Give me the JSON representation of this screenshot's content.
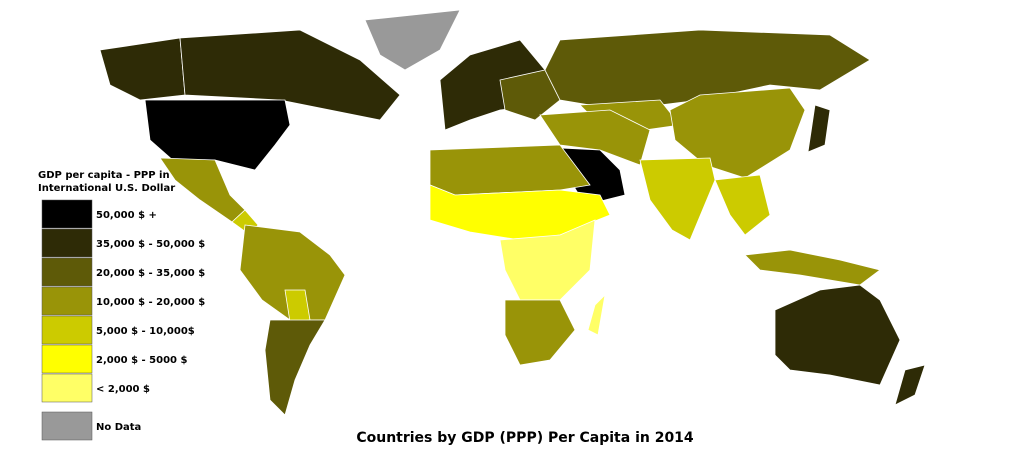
{
  "map": {
    "title": "Countries by GDP (PPP) Per Capita in 2014",
    "legend": {
      "title": [
        "GDP per capita - PPP in",
        "International U.S. Dollar"
      ],
      "items": [
        {
          "label": "50,000 $ +",
          "color": "#000000"
        },
        {
          "label": "35,000 $ - 50,000 $",
          "color": "#2e2b06"
        },
        {
          "label": "20,000 $ - 35,000 $",
          "color": "#5e5a08"
        },
        {
          "label": "10,000 $ - 20,000 $",
          "color": "#999408"
        },
        {
          "label": "5,000 $ - 10,000$",
          "color": "#cccb00"
        },
        {
          "label": "2,000 $ - 5000 $",
          "color": "#ffff00"
        },
        {
          "label": "< 2,000 $",
          "color": "#ffff66"
        },
        {
          "label": "No Data",
          "color": "#999999"
        }
      ]
    }
  }
}
